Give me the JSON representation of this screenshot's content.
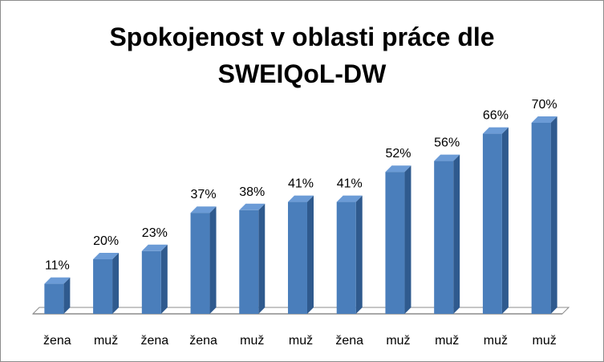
{
  "chart_data": {
    "type": "bar",
    "title_lines": [
      "Spokojenost v oblasti práce dle",
      "SWEIQoL-DW"
    ],
    "title": "Spokojenost v oblasti práce dle SWEIQoL-DW",
    "categories": [
      "žena",
      "muž",
      "žena",
      "žena",
      "muž",
      "muž",
      "žena",
      "muž",
      "muž",
      "muž",
      "muž"
    ],
    "values": [
      11,
      20,
      23,
      37,
      38,
      41,
      41,
      52,
      56,
      66,
      70
    ],
    "value_labels": [
      "11%",
      "20%",
      "23%",
      "37%",
      "38%",
      "41%",
      "41%",
      "52%",
      "56%",
      "66%",
      "70%"
    ],
    "value_unit": "%",
    "ylim": [
      0,
      70
    ],
    "grid": false,
    "legend": "none",
    "style": "3d-column",
    "colors": {
      "bar_front": "#4a7ebb",
      "bar_top": "#6b9bd6",
      "bar_side": "#2f5a8e",
      "floor": "#ffffff",
      "floor_edge": "#8c8c8c"
    }
  }
}
